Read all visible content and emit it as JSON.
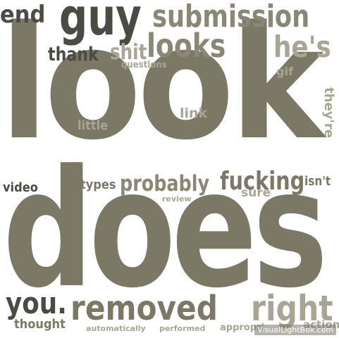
{
  "words": {
    "look": "look",
    "does": "does",
    "removed": "removed",
    "right": "right",
    "you": "you.",
    "guy": "guy",
    "end": "end",
    "submission": "submission",
    "looks": "looks",
    "hes": "he's",
    "thank": "thank",
    "shit": "shit",
    "questions": "questions",
    "gif": "gif",
    "link": "link",
    "little": "little",
    "theyre": "they're",
    "video": "video",
    "types": "types",
    "probably": "probably",
    "review": "review",
    "fucking": "fucking",
    "sure": "sure",
    "isnt": "isn't",
    "thought": "thought",
    "automatically": "automatically",
    "performed": "performed",
    "appropriate": "appropri",
    "action": "action"
  },
  "watermark": "VisualLightBox.com",
  "colors": {
    "background": "#ffffff",
    "dark": "#4b4b44",
    "olive": "#7b7866",
    "light": "#a9a594"
  }
}
